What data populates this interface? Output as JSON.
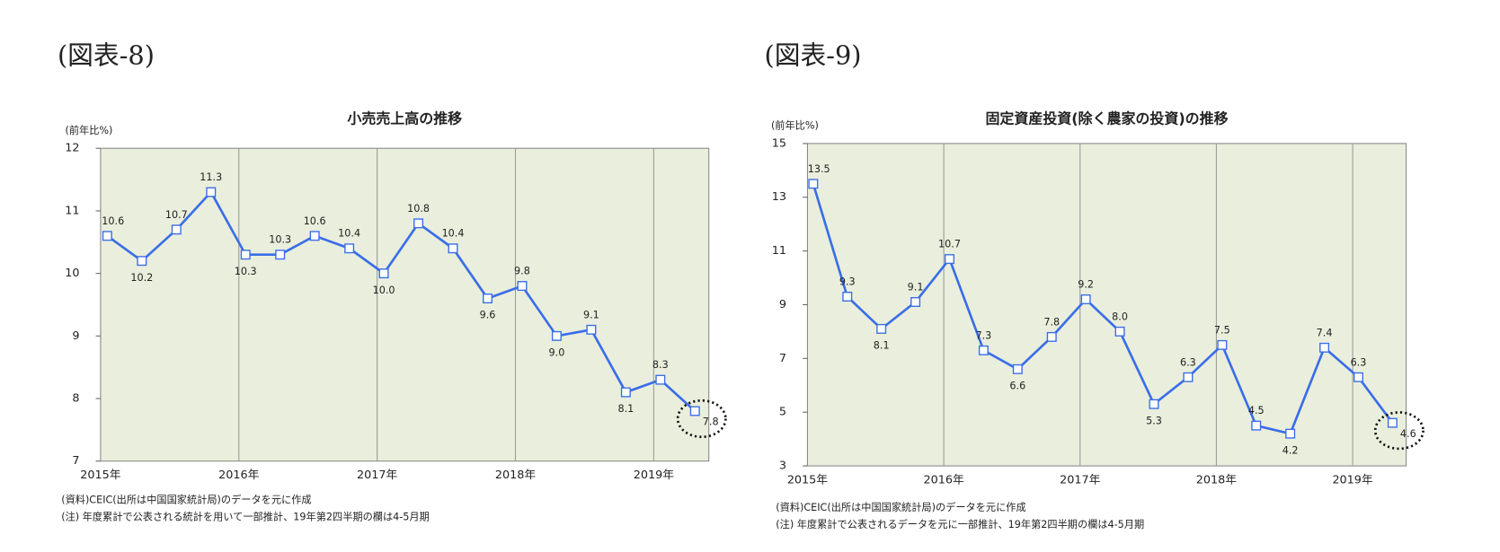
{
  "chart_data": [
    {
      "type": "line",
      "figure_label": "(図表-8)",
      "title": "小売売上高の推移",
      "y_unit": "(前年比%)",
      "categories": [
        "2015年",
        null,
        null,
        null,
        "2016年",
        null,
        null,
        null,
        "2017年",
        null,
        null,
        null,
        "2018年",
        null,
        null,
        null,
        "2019年",
        null
      ],
      "values": [
        10.6,
        10.2,
        10.7,
        11.3,
        10.3,
        10.3,
        10.6,
        10.4,
        10.0,
        10.8,
        10.4,
        9.6,
        9.8,
        9.0,
        9.1,
        8.1,
        8.3,
        7.8
      ],
      "value_labels": [
        "10.6",
        "10.2",
        "10.7",
        "11.3",
        "10.3",
        "10.3",
        "10.6",
        "10.4",
        "10.0",
        "10.8",
        "10.4",
        "9.6",
        "9.8",
        "9.0",
        "9.1",
        "8.1",
        "8.3",
        "7.8"
      ],
      "color": "#3a6ee8",
      "plot_color": "#eaeedc",
      "ylim": [
        7,
        12
      ],
      "yticks": [
        7,
        8,
        9,
        10,
        11,
        12
      ],
      "notes": [
        "(資料)CEIC(出所は中国国家統計局)のデータを元に作成",
        "(注) 年度累計で公表される統計を用いて一部推計、19年第2四半期の欄は4-5月期"
      ]
    },
    {
      "type": "line",
      "figure_label": "(図表-9)",
      "title": "固定資産投資(除く農家の投資)の推移",
      "y_unit": "(前年比%)",
      "categories": [
        "2015年",
        null,
        null,
        null,
        "2016年",
        null,
        null,
        null,
        "2017年",
        null,
        null,
        null,
        "2018年",
        null,
        null,
        null,
        "2019年",
        null
      ],
      "values": [
        13.5,
        9.3,
        8.1,
        9.1,
        10.7,
        7.3,
        6.6,
        7.8,
        9.2,
        8.0,
        5.3,
        6.3,
        7.5,
        4.5,
        4.2,
        7.4,
        6.3,
        4.6
      ],
      "value_labels": [
        "13.5",
        "9.3",
        "8.1",
        "9.1",
        "10.7",
        "7.3",
        "6.6",
        "7.8",
        "9.2",
        "8.0",
        "5.3",
        "6.3",
        "7.5",
        "4.5",
        "4.2",
        "7.4",
        "6.3",
        "4.6"
      ],
      "color": "#3a6ee8",
      "plot_color": "#eaeedc",
      "ylim": [
        3,
        15
      ],
      "yticks": [
        3,
        5,
        7,
        9,
        11,
        13,
        15
      ],
      "notes": [
        "(資料)CEIC(出所は中国国家統計局)のデータを元に作成",
        "(注) 年度累計で公表されるデータを元に一部推計、19年第2四半期の欄は4-5月期"
      ]
    }
  ]
}
